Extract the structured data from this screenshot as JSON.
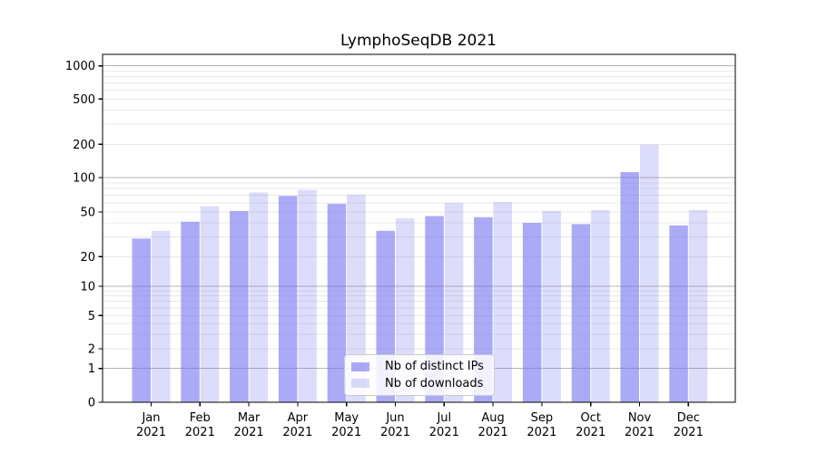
{
  "figure": {
    "title": "LymphoSeqDB 2021"
  },
  "chart_data": {
    "type": "bar",
    "title": "LymphoSeqDB 2021",
    "categories": [
      "Jan 2021",
      "Feb 2021",
      "Mar 2021",
      "Apr 2021",
      "May 2021",
      "Jun 2021",
      "Jul 2021",
      "Aug 2021",
      "Sep 2021",
      "Oct 2021",
      "Nov 2021",
      "Dec 2021"
    ],
    "series": [
      {
        "name": "Nb of distinct IPs",
        "color": "rgba(110,110,240,0.59)",
        "values": [
          29,
          41,
          51,
          69,
          59,
          34,
          46,
          45,
          40,
          39,
          112,
          38
        ]
      },
      {
        "name": "Nb of downloads",
        "color": "rgba(110,110,240,0.24)",
        "values": [
          34,
          56,
          74,
          78,
          71,
          44,
          60,
          61,
          51,
          52,
          199,
          52
        ]
      }
    ],
    "xlabel": "",
    "ylabel": "",
    "yscale": "symlog",
    "y_ticks": [
      0,
      1,
      2,
      5,
      10,
      20,
      50,
      100,
      200,
      500,
      1000
    ],
    "ylim": [
      0,
      1300
    ],
    "grid": true,
    "legend_position": "lower center"
  },
  "colors": {
    "grid_major": "#b4b4b4",
    "grid_minor": "#e8e8e8",
    "axis": "#000000",
    "tick_label": "#000000",
    "background": "#ffffff",
    "legend_border": "#cccccc"
  }
}
